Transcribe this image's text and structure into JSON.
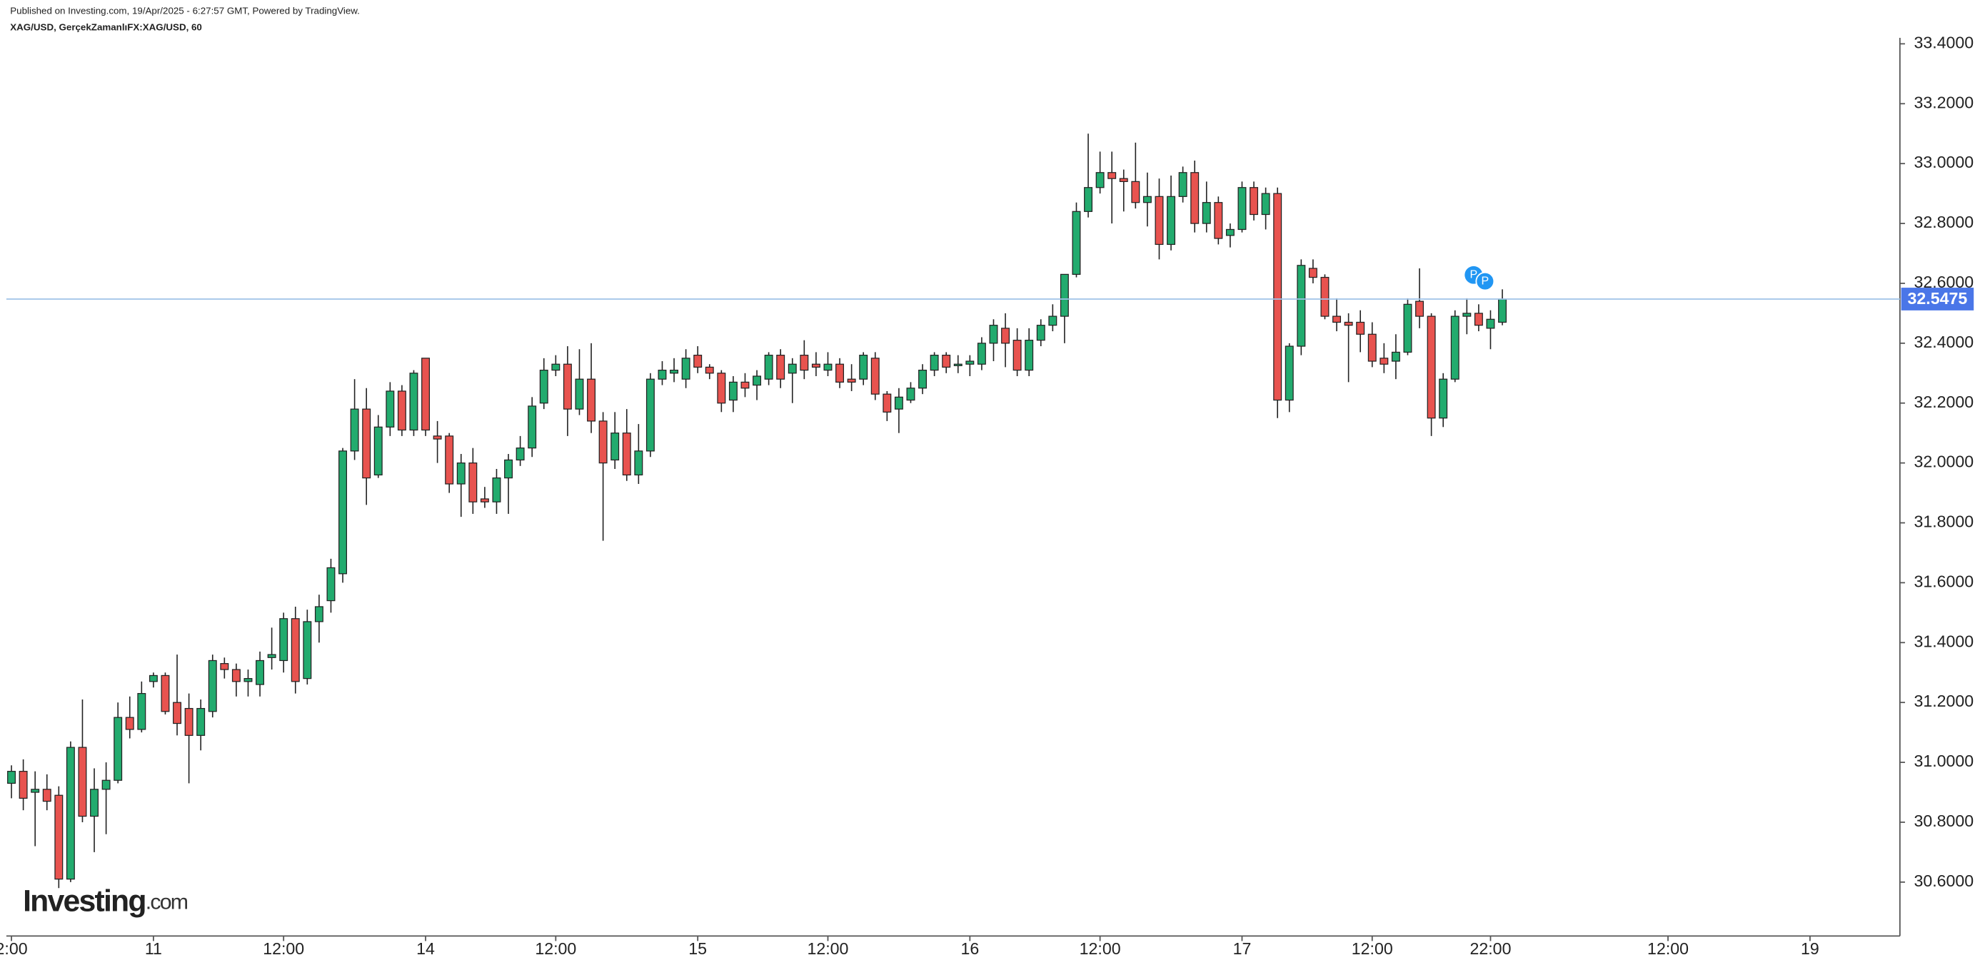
{
  "header": {
    "published": "Published on Investing.com, 19/Apr/2025 - 6:27:57 GMT, Powered by TradingView.",
    "symbol": "XAG/USD, GerçekZamanlıFX:XAG/USD, 60"
  },
  "logo": {
    "brand": "Investing",
    "suffix": ".com"
  },
  "annotations": [
    "P",
    "P"
  ],
  "chart_data": {
    "type": "candlestick",
    "up_color": "#22ab6e",
    "down_color": "#e8534f",
    "open": [
      30.93,
      30.97,
      30.9,
      30.91,
      30.89,
      30.61,
      31.05,
      30.82,
      30.91,
      30.94,
      31.15,
      31.11,
      31.27,
      31.29,
      31.2,
      31.18,
      31.09,
      31.17,
      31.33,
      31.31,
      31.27,
      31.26,
      31.35,
      31.34,
      31.48,
      31.28,
      31.47,
      31.54,
      31.63,
      32.04,
      32.18,
      31.96,
      32.12,
      32.24,
      32.11,
      32.35,
      32.09,
      32.09,
      31.93,
      32.0,
      31.88,
      31.87,
      31.95,
      32.01,
      32.05,
      32.2,
      32.31,
      32.33,
      32.18,
      32.28,
      32.14,
      32.01,
      32.1,
      31.96,
      32.04,
      32.28,
      32.3,
      32.28,
      32.36,
      32.32,
      32.3,
      32.21,
      32.27,
      32.26,
      32.28,
      32.36,
      32.3,
      32.36,
      32.33,
      32.31,
      32.33,
      32.28,
      32.28,
      32.35,
      32.23,
      32.18,
      32.21,
      32.25,
      32.31,
      32.36,
      32.33,
      32.33,
      32.33,
      32.4,
      32.45,
      32.41,
      32.31,
      32.41,
      32.46,
      32.49,
      32.63,
      32.84,
      32.92,
      32.97,
      32.95,
      32.94,
      32.87,
      32.89,
      32.73,
      32.89,
      32.97,
      32.8,
      32.87,
      32.76,
      32.78,
      32.92,
      32.83,
      32.9,
      32.21,
      32.39,
      32.65,
      32.62,
      32.49,
      32.47,
      32.47,
      32.43,
      32.35,
      32.34,
      32.37,
      32.54,
      32.49,
      32.15,
      32.28,
      32.49,
      32.5,
      32.45,
      32.47
    ],
    "high": [
      30.99,
      31.01,
      30.97,
      30.96,
      30.92,
      31.07,
      31.21,
      30.98,
      31.0,
      31.2,
      31.22,
      31.27,
      31.3,
      31.3,
      31.36,
      31.23,
      31.21,
      31.36,
      31.35,
      31.33,
      31.31,
      31.37,
      31.45,
      31.5,
      31.52,
      31.51,
      31.56,
      31.68,
      32.05,
      32.28,
      32.25,
      32.16,
      32.27,
      32.26,
      32.31,
      32.35,
      32.14,
      32.1,
      32.03,
      32.05,
      31.92,
      31.98,
      32.03,
      32.09,
      32.22,
      32.35,
      32.36,
      32.39,
      32.38,
      32.4,
      32.17,
      32.17,
      32.18,
      32.13,
      32.3,
      32.34,
      32.35,
      32.38,
      32.39,
      32.33,
      32.31,
      32.29,
      32.3,
      32.31,
      32.37,
      32.38,
      32.35,
      32.41,
      32.37,
      32.37,
      32.35,
      32.33,
      32.37,
      32.37,
      32.24,
      32.25,
      32.27,
      32.33,
      32.37,
      32.37,
      32.36,
      32.36,
      32.42,
      32.48,
      32.5,
      32.45,
      32.45,
      32.48,
      32.53,
      32.63,
      32.87,
      33.1,
      33.04,
      33.04,
      32.98,
      33.07,
      32.97,
      32.95,
      32.96,
      32.99,
      33.01,
      32.94,
      32.89,
      32.8,
      32.94,
      32.94,
      32.92,
      32.92,
      32.4,
      32.68,
      32.68,
      32.63,
      32.55,
      32.5,
      32.51,
      32.47,
      32.4,
      32.43,
      32.55,
      32.65,
      32.5,
      32.3,
      32.51,
      32.55,
      32.53,
      32.51,
      32.58
    ],
    "low": [
      30.88,
      30.84,
      30.72,
      30.84,
      30.58,
      30.6,
      30.8,
      30.7,
      30.76,
      30.93,
      31.08,
      31.1,
      31.25,
      31.16,
      31.09,
      30.93,
      31.04,
      31.15,
      31.28,
      31.22,
      31.22,
      31.22,
      31.31,
      31.3,
      31.23,
      31.26,
      31.4,
      31.5,
      31.6,
      32.01,
      31.86,
      31.95,
      32.09,
      32.09,
      32.09,
      32.09,
      32.0,
      31.9,
      31.82,
      31.83,
      31.85,
      31.83,
      31.83,
      31.99,
      32.02,
      32.18,
      32.29,
      32.09,
      32.16,
      32.1,
      31.74,
      31.98,
      31.94,
      31.93,
      32.02,
      32.26,
      32.27,
      32.25,
      32.3,
      32.28,
      32.17,
      32.17,
      32.22,
      32.21,
      32.26,
      32.25,
      32.2,
      32.28,
      32.29,
      32.29,
      32.25,
      32.24,
      32.26,
      32.21,
      32.14,
      32.1,
      32.2,
      32.23,
      32.29,
      32.3,
      32.3,
      32.29,
      32.31,
      32.34,
      32.32,
      32.29,
      32.29,
      32.39,
      32.44,
      32.4,
      32.62,
      32.82,
      32.9,
      32.8,
      32.84,
      32.85,
      32.79,
      32.68,
      32.71,
      32.87,
      32.77,
      32.77,
      32.73,
      32.72,
      32.77,
      32.81,
      32.78,
      32.15,
      32.17,
      32.36,
      32.6,
      32.48,
      32.44,
      32.27,
      32.37,
      32.32,
      32.3,
      32.28,
      32.36,
      32.45,
      32.09,
      32.12,
      32.27,
      32.43,
      32.44,
      32.38,
      32.46
    ],
    "close": [
      30.97,
      30.88,
      30.91,
      30.87,
      30.61,
      31.05,
      30.82,
      30.91,
      30.94,
      31.15,
      31.11,
      31.23,
      31.29,
      31.17,
      31.13,
      31.09,
      31.18,
      31.34,
      31.31,
      31.27,
      31.28,
      31.34,
      31.36,
      31.48,
      31.27,
      31.47,
      31.52,
      31.65,
      32.04,
      32.18,
      31.95,
      32.12,
      32.24,
      32.11,
      32.3,
      32.11,
      32.08,
      31.93,
      32.0,
      31.87,
      31.87,
      31.95,
      32.01,
      32.05,
      32.19,
      32.31,
      32.33,
      32.18,
      32.28,
      32.14,
      32.0,
      32.1,
      31.96,
      32.04,
      32.28,
      32.31,
      32.31,
      32.35,
      32.32,
      32.3,
      32.2,
      32.27,
      32.25,
      32.29,
      32.36,
      32.28,
      32.33,
      32.31,
      32.32,
      32.33,
      32.27,
      32.27,
      32.36,
      32.23,
      32.17,
      32.22,
      32.25,
      32.31,
      32.36,
      32.32,
      32.33,
      32.34,
      32.4,
      32.46,
      32.4,
      32.31,
      32.41,
      32.46,
      32.49,
      32.63,
      32.84,
      32.92,
      32.97,
      32.95,
      32.94,
      32.87,
      32.89,
      32.73,
      32.89,
      32.97,
      32.8,
      32.87,
      32.75,
      32.78,
      32.92,
      32.83,
      32.9,
      32.21,
      32.39,
      32.66,
      32.62,
      32.49,
      32.47,
      32.46,
      32.43,
      32.34,
      32.33,
      32.37,
      32.53,
      32.49,
      32.15,
      32.28,
      32.49,
      32.5,
      32.46,
      32.48,
      32.5475
    ],
    "last_price": 32.5475,
    "xlim": [
      -0.43,
      159.6
    ],
    "ylim": [
      30.42,
      33.42
    ],
    "xticks": [
      {
        "value": 0,
        "label": "2:00"
      },
      {
        "value": 12,
        "label": "11"
      },
      {
        "value": 23,
        "label": "12:00"
      },
      {
        "value": 35,
        "label": "14"
      },
      {
        "value": 46,
        "label": "12:00"
      },
      {
        "value": 58,
        "label": "15"
      },
      {
        "value": 69,
        "label": "12:00"
      },
      {
        "value": 81,
        "label": "16"
      },
      {
        "value": 92,
        "label": "12:00"
      },
      {
        "value": 104,
        "label": "17"
      },
      {
        "value": 115,
        "label": "12:00"
      },
      {
        "value": 125,
        "label": "22:00"
      },
      {
        "value": 140,
        "label": "12:00"
      },
      {
        "value": 152,
        "label": "19"
      }
    ],
    "yticks": [
      {
        "value": 30.6,
        "label": "30.6000"
      },
      {
        "value": 30.8,
        "label": "30.8000"
      },
      {
        "value": 31.0,
        "label": "31.0000"
      },
      {
        "value": 31.2,
        "label": "31.2000"
      },
      {
        "value": 31.4,
        "label": "31.4000"
      },
      {
        "value": 31.6,
        "label": "31.6000"
      },
      {
        "value": 31.8,
        "label": "31.8000"
      },
      {
        "value": 32.0,
        "label": "32.0000"
      },
      {
        "value": 32.2,
        "label": "32.2000"
      },
      {
        "value": 32.4,
        "label": "32.4000"
      },
      {
        "value": 32.6,
        "label": "32.6000"
      },
      {
        "value": 32.8,
        "label": "32.8000"
      },
      {
        "value": 33.0,
        "label": "33.0000"
      },
      {
        "value": 33.2,
        "label": "33.2000"
      },
      {
        "value": 33.4,
        "label": "33.4000"
      }
    ]
  }
}
